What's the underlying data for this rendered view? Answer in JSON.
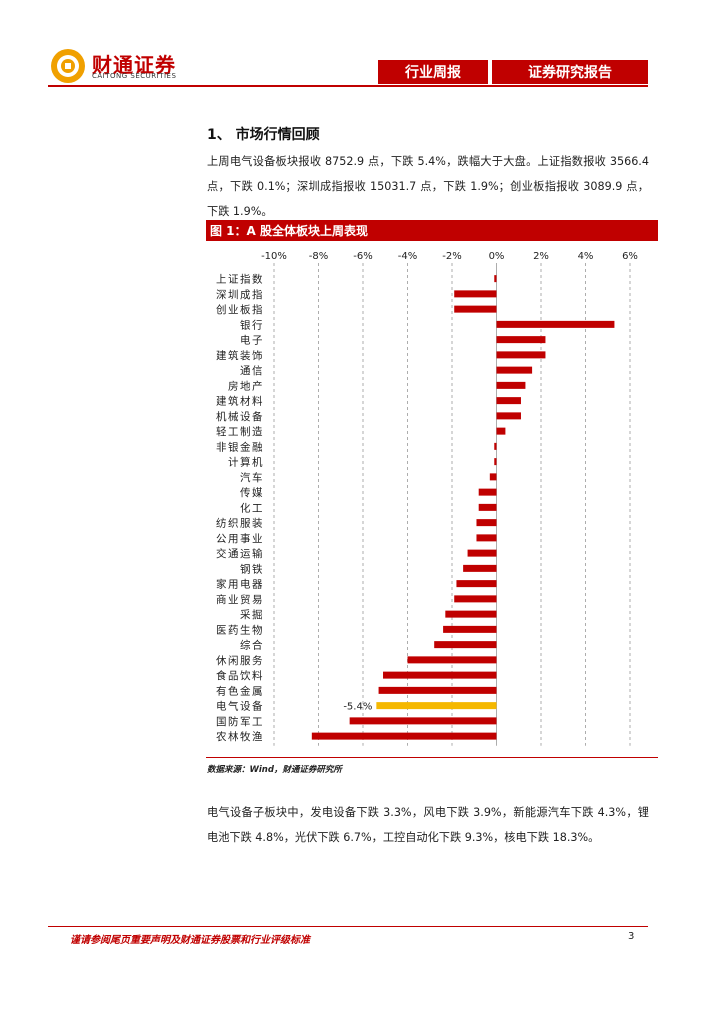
{
  "header": {
    "logo_cn": "财通证券",
    "logo_en": "CAITONG SECURITIES",
    "tab_left": "行业周报",
    "tab_right": "证券研究报告"
  },
  "section": {
    "title": "1、 市场行情回顾",
    "para1": "上周电气设备板块报收 8752.9 点，下跌 5.4%，跌幅大于大盘。上证指数报收 3566.4 点，下跌 0.1%；深圳成指报收 15031.7 点，下跌 1.9%；创业板指报收 3089.9 点，下跌 1.9%。",
    "para2": "电气设备子板块中，发电设备下跌 3.3%，风电下跌 3.9%，新能源汽车下跌 4.3%，锂电池下跌 4.8%，光伏下跌 6.7%，工控自动化下跌 9.3%，核电下跌 18.3%。"
  },
  "figure": {
    "title": "图 1：A 股全体板块上周表现",
    "source": "数据来源：Wind，财通证券研究所"
  },
  "chart_data": {
    "type": "bar",
    "orientation": "horizontal",
    "title": "图 1：A 股全体板块上周表现",
    "xlim": [
      -10,
      6
    ],
    "ticks": [
      "-10%",
      "-8%",
      "-6%",
      "-4%",
      "-2%",
      "0%",
      "2%",
      "4%",
      "6%"
    ],
    "tick_values": [
      -10,
      -8,
      -6,
      -4,
      -2,
      0,
      2,
      4,
      6
    ],
    "grid": true,
    "highlight_label": "-5.4%",
    "categories": [
      "上证指数",
      "深圳成指",
      "创业板指",
      "银行",
      "电子",
      "建筑装饰",
      "通信",
      "房地产",
      "建筑材料",
      "机械设备",
      "轻工制造",
      "非银金融",
      "计算机",
      "汽车",
      "传媒",
      "化工",
      "纺织服装",
      "公用事业",
      "交通运输",
      "钢铁",
      "家用电器",
      "商业贸易",
      "采掘",
      "医药生物",
      "综合",
      "休闲服务",
      "食品饮料",
      "有色金属",
      "电气设备",
      "国防军工",
      "农林牧渔"
    ],
    "values": [
      -0.1,
      -1.9,
      -1.9,
      5.3,
      2.2,
      2.2,
      1.6,
      1.3,
      1.1,
      1.1,
      0.4,
      -0.1,
      -0.1,
      -0.3,
      -0.8,
      -0.8,
      -0.9,
      -0.9,
      -1.3,
      -1.5,
      -1.8,
      -1.9,
      -2.3,
      -2.4,
      -2.8,
      -4.0,
      -5.1,
      -5.3,
      -5.4,
      -6.6,
      -8.3
    ],
    "colors": {
      "default": "#c00000",
      "highlight": "#f5b800"
    },
    "highlight_index": 28
  },
  "footer": {
    "disclaimer": "谨请参阅尾页重要声明及财通证券股票和行业评级标准",
    "page": "3"
  }
}
